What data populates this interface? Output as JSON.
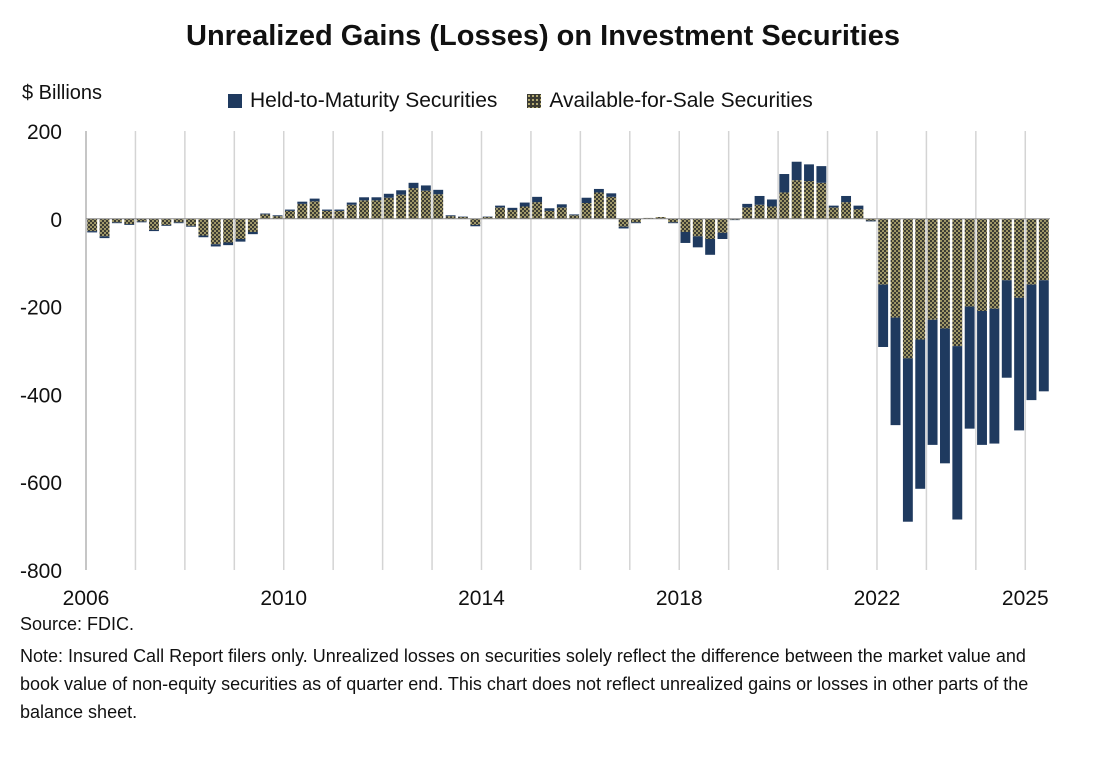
{
  "chart_data": {
    "type": "bar",
    "stacked": true,
    "title": "Unrealized Gains (Losses) on Investment Securities",
    "ylabel": "$ Billions",
    "xlabel": "",
    "ylim": [
      -800,
      200
    ],
    "yticks": [
      200,
      0,
      -200,
      -400,
      -600,
      -800
    ],
    "ytick_labels": [
      "200",
      "0",
      "-200",
      "-400",
      "-600",
      "-800"
    ],
    "xtick_labels": [
      "2006",
      "2010",
      "2014",
      "2018",
      "2022",
      "2025"
    ],
    "legend": [
      "Held-to-Maturity Securities",
      "Available-for-Sale Securities"
    ],
    "legend_position": "top",
    "grid": "vertical lines at years",
    "start": "2006Q1",
    "end": "2025Q1",
    "series": [
      {
        "name": "Available-for-Sale Securities",
        "color": "#7a7550",
        "values": [
          -28,
          -40,
          -8,
          -12,
          -6,
          -25,
          -14,
          -8,
          -16,
          -38,
          -58,
          -54,
          -46,
          -30,
          10,
          6,
          18,
          34,
          40,
          18,
          18,
          32,
          42,
          42,
          48,
          55,
          70,
          64,
          56,
          6,
          4,
          -14,
          4,
          26,
          20,
          28,
          38,
          18,
          26,
          8,
          36,
          60,
          50,
          -18,
          -8,
          2,
          4,
          -8,
          -30,
          -40,
          -46,
          -32,
          -2,
          26,
          32,
          28,
          60,
          88,
          86,
          82,
          26,
          38,
          22,
          -4,
          -150,
          -225,
          -318,
          -275,
          -230,
          -250,
          -290,
          -200,
          -210,
          -205,
          -140,
          -180,
          -150,
          -140
        ]
      },
      {
        "name": "Held-to-Maturity Securities",
        "color": "#1f3a5f",
        "values": [
          -3,
          -4,
          -2,
          -2,
          -2,
          -3,
          -2,
          -2,
          -2,
          -4,
          -5,
          -6,
          -6,
          -5,
          2,
          2,
          3,
          5,
          6,
          3,
          3,
          5,
          7,
          7,
          9,
          10,
          12,
          12,
          10,
          2,
          1,
          -3,
          1,
          4,
          5,
          9,
          12,
          6,
          7,
          2,
          12,
          8,
          8,
          -4,
          -2,
          0,
          0,
          -2,
          -25,
          -25,
          -36,
          -14,
          -1,
          8,
          20,
          16,
          42,
          42,
          38,
          38,
          4,
          14,
          8,
          -2,
          -142,
          -245,
          -372,
          -340,
          -285,
          -307,
          -395,
          -278,
          -305,
          -307,
          -222,
          -302,
          -263,
          -253
        ]
      }
    ]
  },
  "footer": {
    "source": "Source: FDIC.",
    "note": "Note: Insured Call Report filers only. Unrealized losses on securities solely reflect the difference between the market value and book value of non-equity securities as of quarter end. This chart does not reflect unrealized gains or losses in other parts of the balance sheet."
  }
}
